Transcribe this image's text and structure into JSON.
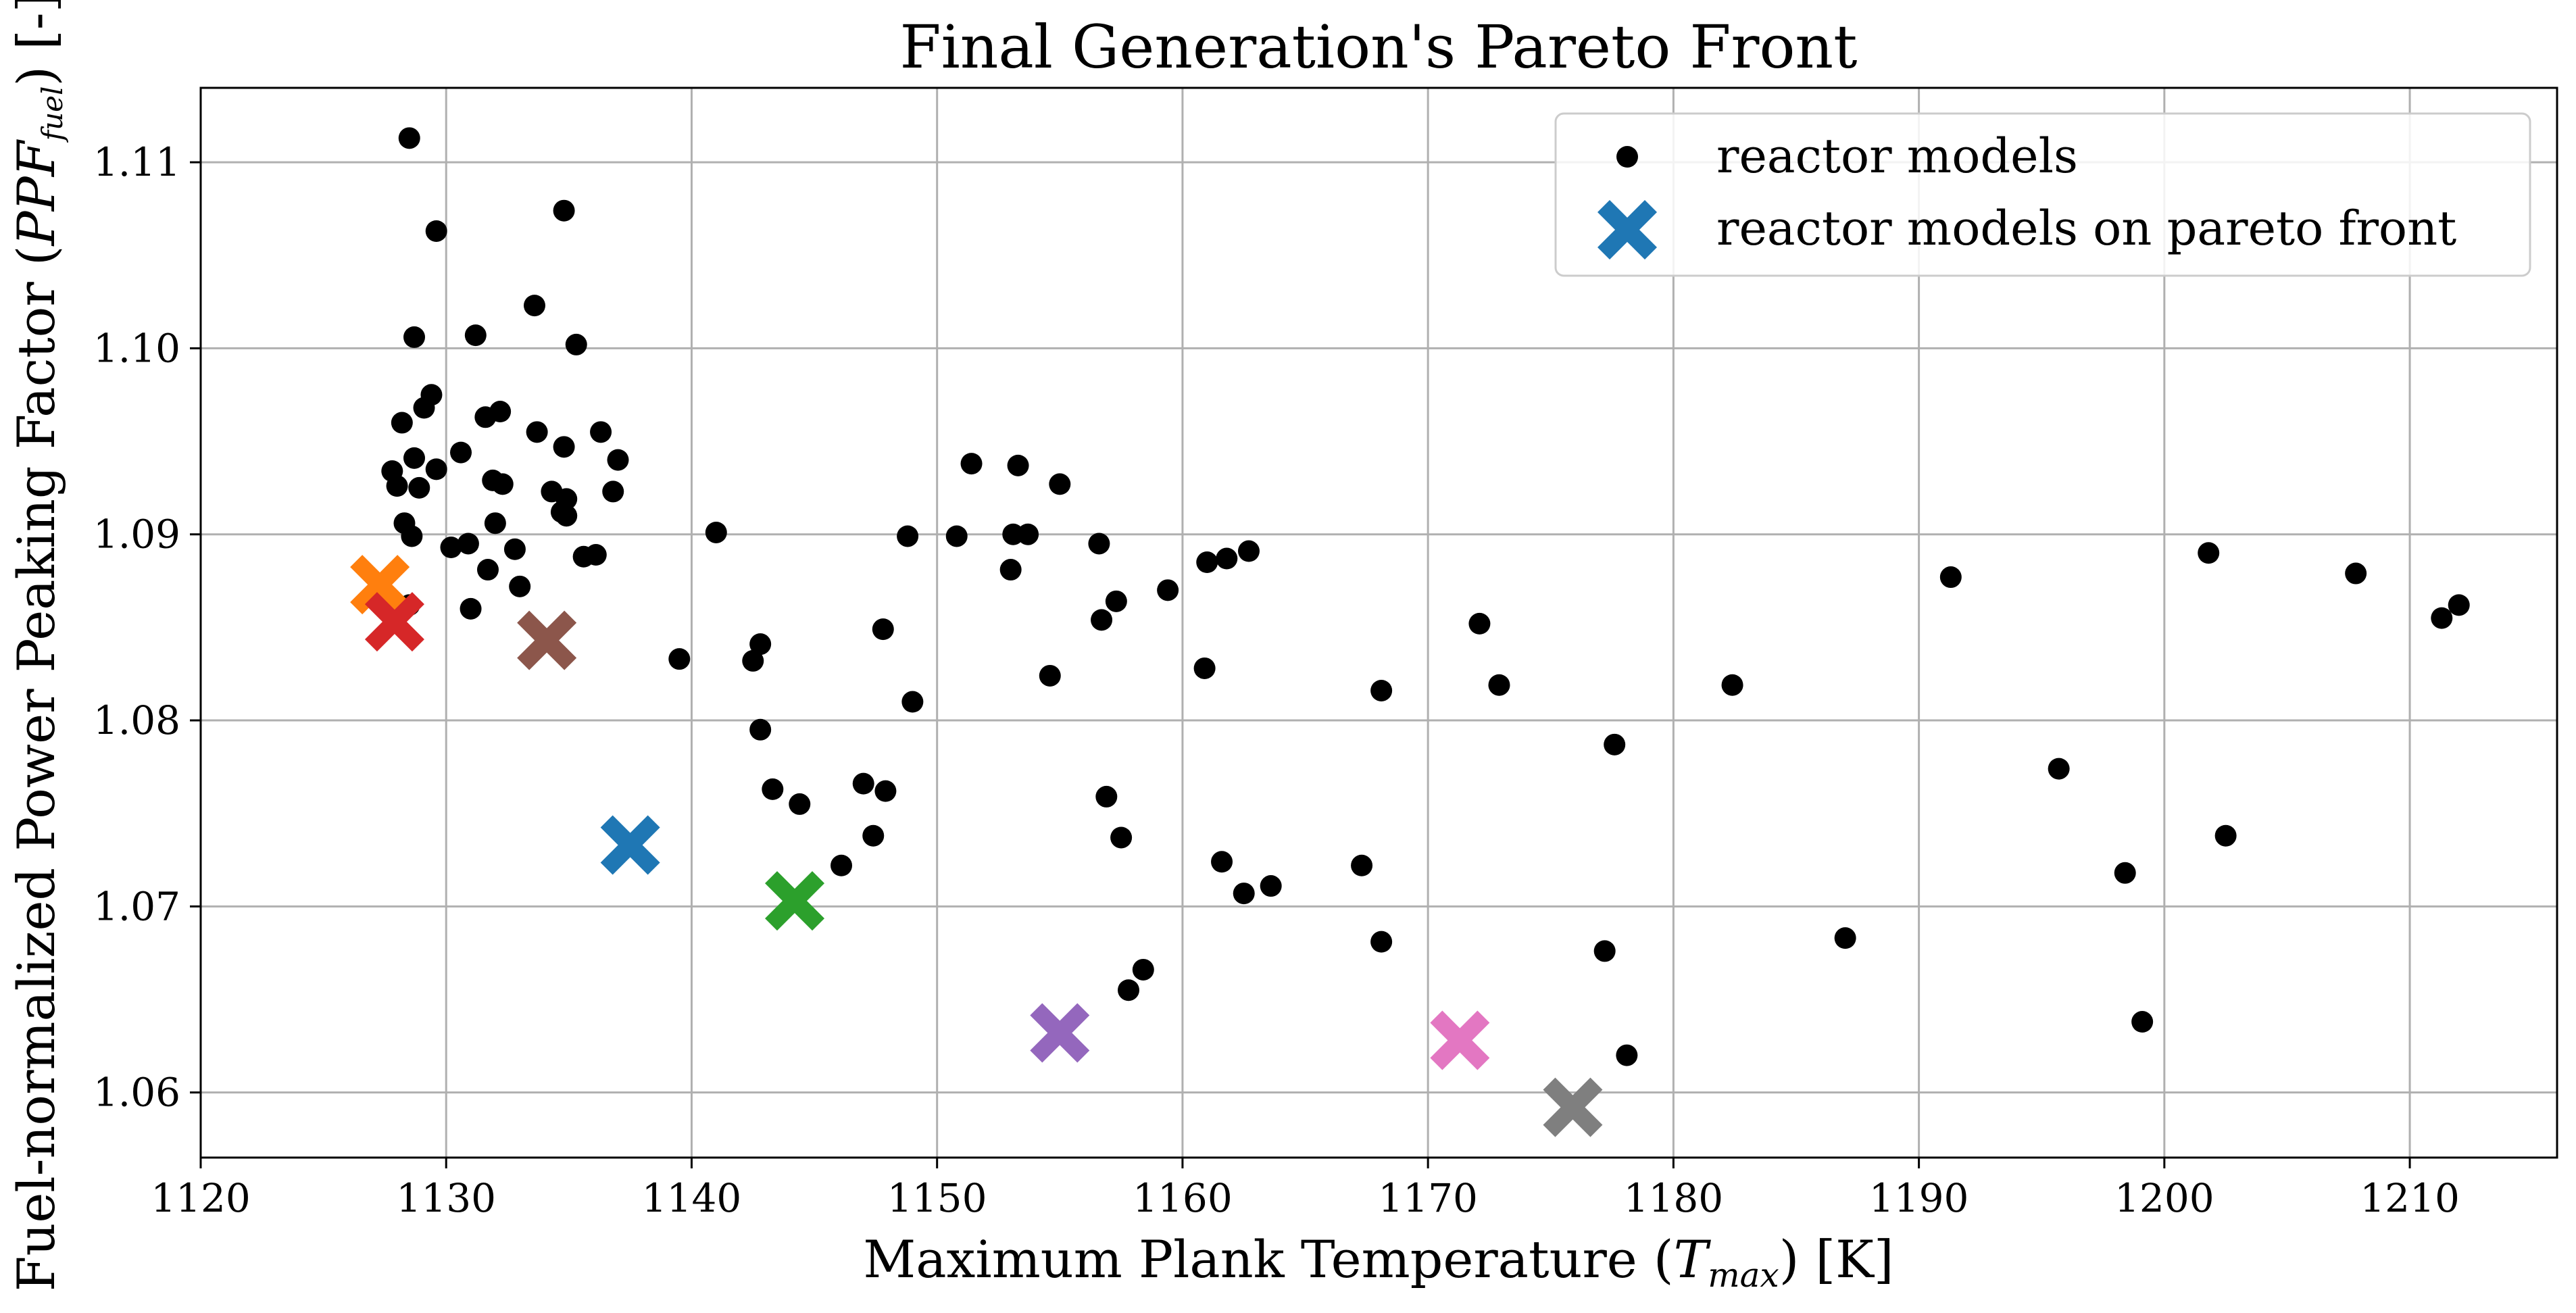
{
  "chart_data": {
    "type": "scatter",
    "title": "Final Generation's Pareto Front",
    "xlabel": {
      "main": "Maximum Plank Temperature (",
      "var": "T",
      "sub": "max",
      "tail": ") [K]"
    },
    "ylabel": {
      "main": "Fuel-normalized Power Peaking Factor (",
      "var": "PPF",
      "sub": "fuel",
      "tail": ") [-]"
    },
    "xlim": [
      1120,
      1216
    ],
    "ylim": [
      1.0565,
      1.114
    ],
    "xticks": [
      1120,
      1130,
      1140,
      1150,
      1160,
      1170,
      1180,
      1190,
      1200,
      1210
    ],
    "yticks": [
      1.06,
      1.07,
      1.08,
      1.09,
      1.1,
      1.11
    ],
    "xtick_labels": [
      "1120",
      "1130",
      "1140",
      "1150",
      "1160",
      "1170",
      "1180",
      "1190",
      "1200",
      "1210"
    ],
    "ytick_labels": [
      "1.06",
      "1.07",
      "1.08",
      "1.09",
      "1.10",
      "1.11"
    ],
    "grid": true,
    "legend": {
      "placement": "top-right",
      "entries": [
        "reactor models",
        "reactor models on pareto front"
      ]
    },
    "series": [
      {
        "name": "reactor models",
        "marker": "dot",
        "color": "#000000",
        "points": [
          [
            1128.5,
            1.1113
          ],
          [
            1129.6,
            1.1063
          ],
          [
            1134.8,
            1.1074
          ],
          [
            1133.6,
            1.1023
          ],
          [
            1128.7,
            1.1006
          ],
          [
            1131.2,
            1.1007
          ],
          [
            1135.3,
            1.1002
          ],
          [
            1129.4,
            1.0975
          ],
          [
            1129.1,
            1.0968
          ],
          [
            1128.2,
            1.096
          ],
          [
            1131.6,
            1.0963
          ],
          [
            1132.2,
            1.0966
          ],
          [
            1133.7,
            1.0955
          ],
          [
            1136.3,
            1.0955
          ],
          [
            1134.8,
            1.0947
          ],
          [
            1128.7,
            1.0941
          ],
          [
            1130.6,
            1.0944
          ],
          [
            1127.8,
            1.0934
          ],
          [
            1129.6,
            1.0935
          ],
          [
            1137.0,
            1.094
          ],
          [
            1128.0,
            1.0926
          ],
          [
            1128.9,
            1.0925
          ],
          [
            1131.9,
            1.0929
          ],
          [
            1132.3,
            1.0927
          ],
          [
            1134.3,
            1.0923
          ],
          [
            1136.8,
            1.0923
          ],
          [
            1134.9,
            1.0919
          ],
          [
            1134.7,
            1.0912
          ],
          [
            1134.9,
            1.091
          ],
          [
            1128.3,
            1.0906
          ],
          [
            1132.0,
            1.0906
          ],
          [
            1128.6,
            1.0899
          ],
          [
            1130.2,
            1.0893
          ],
          [
            1130.9,
            1.0895
          ],
          [
            1132.8,
            1.0892
          ],
          [
            1135.6,
            1.0888
          ],
          [
            1136.1,
            1.0889
          ],
          [
            1131.7,
            1.0881
          ],
          [
            1133.0,
            1.0872
          ],
          [
            1131.0,
            1.086
          ],
          [
            1128.5,
            1.0862
          ],
          [
            1141.0,
            1.0901
          ],
          [
            1139.5,
            1.0833
          ],
          [
            1142.5,
            1.0832
          ],
          [
            1142.8,
            1.0841
          ],
          [
            1142.8,
            1.0795
          ],
          [
            1143.3,
            1.0763
          ],
          [
            1144.4,
            1.0755
          ],
          [
            1146.1,
            1.0722
          ],
          [
            1147.0,
            1.0766
          ],
          [
            1147.4,
            1.0738
          ],
          [
            1147.8,
            1.0849
          ],
          [
            1147.9,
            1.0762
          ],
          [
            1148.8,
            1.0899
          ],
          [
            1149.0,
            1.081
          ],
          [
            1150.8,
            1.0899
          ],
          [
            1151.4,
            1.0938
          ],
          [
            1153.0,
            1.0881
          ],
          [
            1153.1,
            1.09
          ],
          [
            1153.3,
            1.0937
          ],
          [
            1153.7,
            1.09
          ],
          [
            1154.6,
            1.0824
          ],
          [
            1155.0,
            1.0927
          ],
          [
            1156.6,
            1.0895
          ],
          [
            1156.7,
            1.0854
          ],
          [
            1156.9,
            1.0759
          ],
          [
            1157.3,
            1.0864
          ],
          [
            1157.5,
            1.0737
          ],
          [
            1157.8,
            1.0655
          ],
          [
            1158.4,
            1.0666
          ],
          [
            1159.4,
            1.087
          ],
          [
            1160.9,
            1.0828
          ],
          [
            1161.0,
            1.0885
          ],
          [
            1161.6,
            1.0724
          ],
          [
            1161.8,
            1.0887
          ],
          [
            1162.5,
            1.0707
          ],
          [
            1162.7,
            1.0891
          ],
          [
            1163.6,
            1.0711
          ],
          [
            1167.3,
            1.0722
          ],
          [
            1168.1,
            1.0816
          ],
          [
            1168.1,
            1.0681
          ],
          [
            1172.1,
            1.0852
          ],
          [
            1172.9,
            1.0819
          ],
          [
            1177.2,
            1.0676
          ],
          [
            1177.6,
            1.0787
          ],
          [
            1178.1,
            1.062
          ],
          [
            1182.4,
            1.0819
          ],
          [
            1187.0,
            1.0683
          ],
          [
            1191.3,
            1.0877
          ],
          [
            1195.7,
            1.0774
          ],
          [
            1198.4,
            1.0718
          ],
          [
            1199.1,
            1.0638
          ],
          [
            1201.8,
            1.089
          ],
          [
            1202.5,
            1.0738
          ],
          [
            1207.8,
            1.0879
          ],
          [
            1211.3,
            1.0855
          ],
          [
            1212.0,
            1.0862
          ]
        ]
      },
      {
        "name": "reactor models on pareto front",
        "marker": "x",
        "points": [
          {
            "x": 1127.3,
            "y": 1.0873,
            "color": "#ff7f0e"
          },
          {
            "x": 1127.9,
            "y": 1.0853,
            "color": "#d62728"
          },
          {
            "x": 1134.1,
            "y": 1.0843,
            "color": "#8c564b"
          },
          {
            "x": 1137.5,
            "y": 1.0733,
            "color": "#1f77b4"
          },
          {
            "x": 1144.2,
            "y": 1.0703,
            "color": "#2ca02c"
          },
          {
            "x": 1155.0,
            "y": 1.0632,
            "color": "#9467bd"
          },
          {
            "x": 1171.3,
            "y": 1.0628,
            "color": "#e377c2"
          },
          {
            "x": 1175.9,
            "y": 1.0592,
            "color": "#7f7f7f"
          }
        ]
      }
    ]
  }
}
